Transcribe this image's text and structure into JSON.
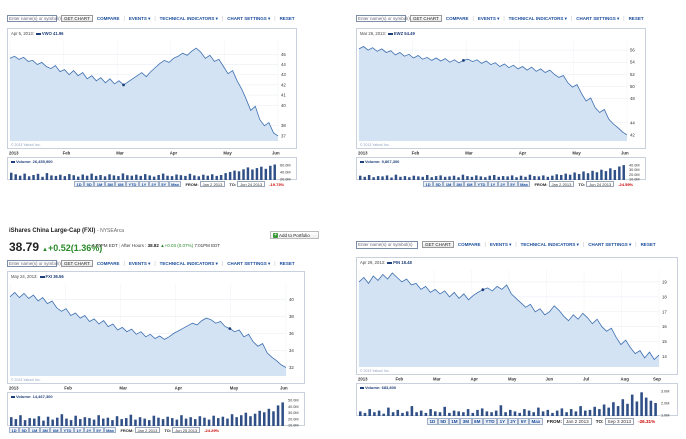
{
  "toolbar": {
    "input_placeholder": "Enter name(s) or symbol(s)",
    "get_chart": "GET CHART",
    "compare": "COMPARE",
    "events": "EVENTS ▾",
    "technical_indicators": "TECHNICAL INDICATORS ▾",
    "chart_settings": "CHART SETTINGS ▾",
    "reset": "RESET"
  },
  "range_buttons": [
    "1D",
    "5D",
    "1M",
    "3M",
    "6M",
    "YTD",
    "1Y",
    "2Y",
    "5Y",
    "Max"
  ],
  "from_label": "FROM:",
  "to_label": "TO:",
  "copyright": "© 2013 Yahoo! Inc.",
  "fund": {
    "title": "iShares China Large-Cap (FXI)",
    "exchange": "- NYSEArca",
    "price": "38.79",
    "change": "+0.52(1.36%)",
    "time": "4:00PM EDT",
    "after_hours_label": "After Hours :",
    "after_hours_price": "38.82",
    "after_hours_change": "+0.03 (0.07%)",
    "after_hours_time": "7:01PM EDT",
    "add_portfolio": "Add to Portfolio"
  },
  "chart_data": [
    {
      "type": "area",
      "symbol": "VWO",
      "title": "",
      "legend_date": "Apr 5, 2013:",
      "legend_value": "VWO 41.96",
      "x_labels": [
        "2013",
        "Feb",
        "Mar",
        "Apr",
        "May",
        "Jun"
      ],
      "y_ticks": [
        37,
        38,
        40,
        41,
        42,
        43,
        44,
        45
      ],
      "ylim": [
        36.5,
        46.3
      ],
      "y": [
        44.6,
        44.8,
        44.5,
        44.7,
        44.3,
        44.4,
        44.0,
        44.2,
        43.8,
        43.6,
        43.9,
        43.3,
        43.5,
        43.0,
        43.4,
        42.9,
        43.2,
        42.6,
        42.9,
        42.4,
        42.7,
        42.2,
        42.6,
        42.1,
        42.4,
        42.0,
        42.3,
        42.6,
        42.9,
        43.2,
        42.8,
        43.3,
        43.7,
        44.1,
        44.4,
        44.2,
        44.6,
        44.8,
        45.1,
        44.9,
        45.3,
        45.6,
        45.2,
        44.6,
        44.9,
        44.3,
        44.5,
        43.8,
        43.1,
        43.4,
        42.4,
        41.6,
        40.6,
        39.5,
        39.9,
        38.6,
        38.0,
        38.3,
        37.3,
        37.0
      ],
      "marker_index": 25,
      "volume_label": "Volume: 26,455,900",
      "vol_ticks": [
        "60.0M",
        "40.0M",
        "20.0M"
      ],
      "vol_max": 70,
      "volumes": [
        32,
        25,
        19,
        28,
        16,
        22,
        27,
        14,
        30,
        20,
        18,
        23,
        17,
        26,
        21,
        15,
        24,
        19,
        28,
        18,
        22,
        16,
        25,
        20,
        17,
        29,
        21,
        19,
        23,
        18,
        26,
        20,
        15,
        22,
        28,
        19,
        17,
        24,
        21,
        18,
        27,
        20,
        16,
        23,
        19,
        25,
        18,
        22,
        30,
        35,
        41,
        38,
        47,
        55,
        46,
        52,
        58,
        49,
        62,
        68
      ],
      "from": "Jan 2 2013",
      "to": "Jun 24 2013",
      "pct": "-19.73%"
    },
    {
      "type": "area",
      "symbol": "EWZ",
      "title": "",
      "legend_date": "Mar 26, 2013:",
      "legend_value": "EWZ 54.49",
      "x_labels": [
        "2013",
        "Feb",
        "Mar",
        "Apr",
        "May",
        "Jun"
      ],
      "y_ticks": [
        42,
        44,
        48,
        50,
        52,
        54,
        56
      ],
      "ylim": [
        41,
        57.5
      ],
      "y": [
        56.2,
        56.6,
        56.0,
        56.4,
        55.8,
        56.2,
        55.6,
        55.9,
        55.2,
        55.6,
        55.0,
        55.3,
        54.7,
        55.1,
        54.5,
        54.8,
        54.3,
        54.7,
        54.2,
        54.6,
        54.0,
        54.4,
        53.9,
        54.3,
        54.5,
        54.1,
        54.4,
        53.8,
        54.2,
        53.6,
        53.9,
        53.3,
        53.7,
        53.1,
        53.5,
        52.9,
        53.3,
        52.7,
        53.2,
        52.5,
        52.9,
        52.3,
        52.7,
        52.0,
        51.5,
        51.8,
        50.6,
        49.9,
        50.3,
        48.8,
        47.6,
        48.1,
        46.5,
        45.7,
        46.2,
        44.6,
        43.8,
        43.2,
        42.5,
        42.0
      ],
      "marker_index": 23,
      "volume_label": "Volume: 9,867,300",
      "vol_ticks": [
        "40.0M",
        "30.0M",
        "20.0M",
        "10.0M"
      ],
      "vol_max": 45,
      "volumes": [
        12,
        9,
        14,
        8,
        11,
        10,
        13,
        7,
        15,
        9,
        11,
        8,
        12,
        10,
        9,
        14,
        8,
        11,
        13,
        9,
        10,
        12,
        8,
        15,
        11,
        9,
        13,
        10,
        8,
        12,
        14,
        9,
        11,
        10,
        13,
        8,
        12,
        9,
        15,
        11,
        10,
        13,
        9,
        12,
        16,
        14,
        18,
        15,
        21,
        17,
        24,
        19,
        26,
        22,
        29,
        25,
        33,
        28,
        38,
        42
      ],
      "from": "Jan 2 2013",
      "to": "Jun 24 2013",
      "pct": "-24.59%"
    },
    {
      "type": "area",
      "symbol": "FXI",
      "title": "",
      "legend_date": "May 24, 2013:",
      "legend_value": "FXI 36.56",
      "x_labels": [
        "2013",
        "Feb",
        "Mar",
        "Apr",
        "May",
        "Jun"
      ],
      "y_ticks": [
        32,
        34,
        36,
        38,
        40
      ],
      "ylim": [
        31,
        41.8
      ],
      "y": [
        40.3,
        40.8,
        40.2,
        40.7,
        40.1,
        40.5,
        39.8,
        40.2,
        39.5,
        39.8,
        39.0,
        38.6,
        38.9,
        38.1,
        38.4,
        37.8,
        38.1,
        37.4,
        37.7,
        37.1,
        37.5,
        36.8,
        37.1,
        36.4,
        36.7,
        36.2,
        36.5,
        35.9,
        36.2,
        35.6,
        35.9,
        35.4,
        35.7,
        35.3,
        35.6,
        36.0,
        36.3,
        36.6,
        36.9,
        37.2,
        37.0,
        37.5,
        37.8,
        37.6,
        37.2,
        37.4,
        36.8,
        36.56,
        36.2,
        36.4,
        35.6,
        35.9,
        35.0,
        34.5,
        34.8,
        33.7,
        33.2,
        32.8,
        32.3,
        32.0
      ],
      "marker_index": 47,
      "volume_label": "Volume: 14,467,300",
      "vol_ticks": [
        "50.0M",
        "40.0M",
        "30.0M",
        "20.0M",
        "10.0M"
      ],
      "vol_max": 55,
      "volumes": [
        18,
        14,
        22,
        12,
        16,
        15,
        20,
        11,
        19,
        13,
        17,
        24,
        15,
        12,
        21,
        14,
        18,
        16,
        13,
        22,
        15,
        17,
        12,
        20,
        14,
        16,
        23,
        13,
        18,
        15,
        12,
        21,
        17,
        14,
        19,
        16,
        13,
        22,
        15,
        18,
        14,
        20,
        17,
        13,
        21,
        16,
        19,
        15,
        24,
        18,
        22,
        27,
        20,
        25,
        31,
        28,
        35,
        30,
        42,
        48
      ],
      "from": "Jan 2 2013",
      "to": "Jun 25 2013",
      "pct": "-24.29%"
    },
    {
      "type": "area",
      "symbol": "PIN",
      "title": "",
      "legend_date": "Apr 29, 2013:",
      "legend_value": "PIN 18.48",
      "x_labels": [
        "2013",
        "Feb",
        "Mar",
        "Apr",
        "May",
        "Jun",
        "Jul",
        "Aug",
        "Sep"
      ],
      "y_ticks": [
        14,
        15,
        16,
        17,
        18,
        19
      ],
      "ylim": [
        13.3,
        19.8
      ],
      "y": [
        19.0,
        19.3,
        18.9,
        19.4,
        19.1,
        19.5,
        19.2,
        19.6,
        19.3,
        19.0,
        19.2,
        18.8,
        18.9,
        18.5,
        18.7,
        18.3,
        18.5,
        18.2,
        18.4,
        18.0,
        18.3,
        17.9,
        18.2,
        17.8,
        18.1,
        18.3,
        18.48,
        18.6,
        18.4,
        18.7,
        18.5,
        18.8,
        18.2,
        17.9,
        17.6,
        17.3,
        17.5,
        17.0,
        17.2,
        16.8,
        17.0,
        17.4,
        17.1,
        16.7,
        16.4,
        16.8,
        16.5,
        16.9,
        16.6,
        16.2,
        16.5,
        16.0,
        15.7,
        15.9,
        15.3,
        14.8,
        15.1,
        14.6,
        14.2,
        14.4,
        13.9,
        14.3,
        13.8,
        14.1
      ],
      "marker_index": 26,
      "volume_label": "Volume: 683,800",
      "vol_ticks": [
        "3.0M",
        "2.0M",
        "1.0M"
      ],
      "vol_max": 3.4,
      "volumes": [
        0.6,
        0.4,
        0.9,
        0.5,
        0.7,
        0.3,
        1.1,
        0.5,
        0.8,
        0.4,
        0.6,
        1.3,
        0.5,
        0.7,
        0.4,
        0.9,
        0.6,
        0.5,
        1.2,
        0.4,
        0.7,
        0.6,
        0.5,
        0.9,
        0.4,
        0.8,
        1.0,
        0.6,
        0.5,
        0.7,
        1.4,
        0.5,
        0.8,
        0.6,
        0.4,
        0.9,
        0.7,
        0.5,
        1.1,
        0.6,
        0.8,
        0.4,
        0.7,
        1.0,
        0.5,
        0.9,
        0.6,
        1.3,
        0.7,
        0.8,
        1.2,
        0.9,
        1.5,
        1.1,
        1.8,
        1.3,
        2.2,
        1.6,
        2.8,
        1.9,
        3.1,
        2.4,
        2.0,
        1.7
      ],
      "from": "Jan 2 2013",
      "to": "Sep 3 2013",
      "pct": "-26.31%"
    }
  ]
}
